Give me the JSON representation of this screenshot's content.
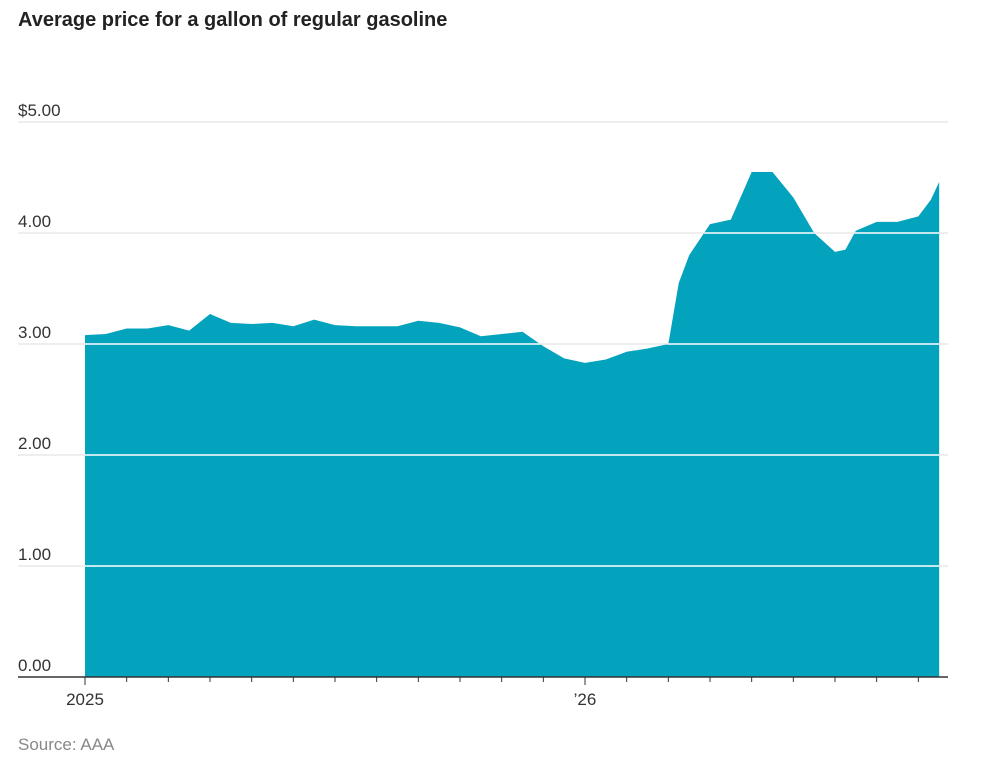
{
  "chart_data": {
    "type": "area",
    "title": "Average price for a gallon of regular gasoline",
    "source": "Source: AAA",
    "x": [
      0,
      0.5,
      1,
      1.5,
      2,
      2.5,
      3,
      3.5,
      4,
      4.5,
      5,
      5.5,
      6,
      6.5,
      7,
      7.5,
      8,
      8.5,
      9,
      9.5,
      10,
      10.5,
      11,
      11.5,
      12,
      12.5,
      13,
      13.5,
      14,
      14.25,
      14.5,
      15,
      15.5,
      16,
      16.5,
      17,
      17.5,
      18,
      18.25,
      18.5,
      19,
      19.5,
      20,
      20.3,
      20.5
    ],
    "values": [
      3.08,
      3.09,
      3.14,
      3.14,
      3.17,
      3.12,
      3.27,
      3.19,
      3.18,
      3.19,
      3.16,
      3.22,
      3.17,
      3.16,
      3.16,
      3.16,
      3.21,
      3.19,
      3.15,
      3.07,
      3.09,
      3.11,
      2.98,
      2.87,
      2.83,
      2.86,
      2.93,
      2.96,
      3.0,
      3.55,
      3.8,
      4.08,
      4.12,
      4.55,
      4.55,
      4.32,
      4.0,
      3.83,
      3.85,
      4.02,
      4.1,
      4.1,
      4.15,
      4.3,
      4.46
    ],
    "color": "#04a3bd",
    "xlim": [
      0,
      20.7
    ],
    "xticks": [
      {
        "value": 0,
        "label": "2025"
      },
      {
        "value": 12,
        "label": "’26"
      }
    ],
    "x_minor_ticks": [
      1,
      2,
      3,
      4,
      5,
      6,
      7,
      8,
      9,
      10,
      11,
      13,
      14,
      15,
      16,
      17,
      18,
      19,
      20
    ],
    "ylim": [
      0,
      5
    ],
    "yticks": [
      {
        "value": 0,
        "label": "0.00"
      },
      {
        "value": 1,
        "label": "1.00"
      },
      {
        "value": 2,
        "label": "2.00"
      },
      {
        "value": 3,
        "label": "3.00"
      },
      {
        "value": 4,
        "label": "4.00"
      },
      {
        "value": 5,
        "label": "$5.00"
      }
    ],
    "grid": true
  }
}
